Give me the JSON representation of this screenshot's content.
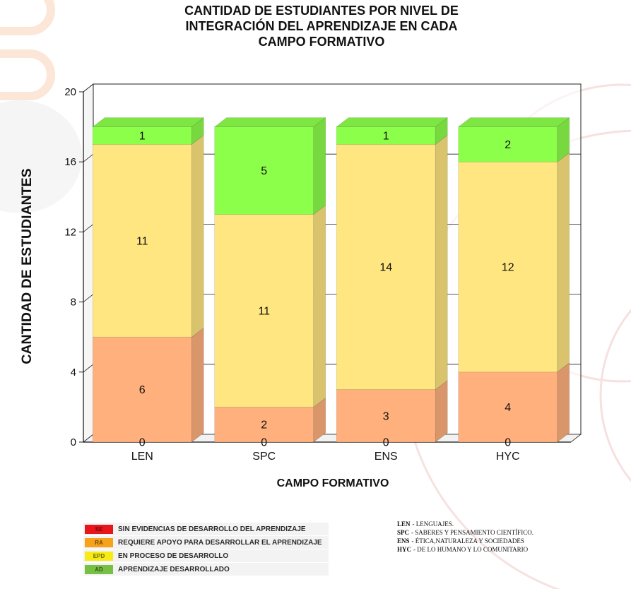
{
  "chart_data": {
    "type": "bar",
    "stacked": true,
    "three_d": true,
    "title": "CANTIDAD DE ESTUDIANTES POR NIVEL DE INTEGRACIÓN DEL APRENDIZAJE EN CADA CAMPO FORMATIVO",
    "xlabel": "CAMPO FORMATIVO",
    "ylabel": "CANTIDAD DE ESTUDIANTES",
    "categories": [
      "LEN",
      "SPC",
      "ENS",
      "HYC"
    ],
    "ylim": [
      0,
      20
    ],
    "yticks": [
      0,
      4,
      8,
      12,
      16,
      20
    ],
    "grid": true,
    "data_labels": true,
    "legend_position": "bottom-left",
    "series": [
      {
        "name": "SE",
        "description": "SIN EVIDENCIAS DE DESARROLLO DEL APRENDIZAJE",
        "values": [
          0,
          0,
          0,
          0
        ],
        "legend_color": "#E8161B"
      },
      {
        "name": "RA",
        "description": "REQUIERE APOYO PARA DESARROLLAR EL APRENDIZAJE",
        "values": [
          6,
          2,
          3,
          4
        ],
        "color": "#FFB07D",
        "legend_color": "#F7A21B"
      },
      {
        "name": "EPD",
        "description": "EN PROCESO DE DESARROLLO",
        "values": [
          11,
          11,
          14,
          12
        ],
        "color": "#FFE680",
        "legend_color": "#F6EB14"
      },
      {
        "name": "AD",
        "description": "APRENDIZAJE DESARROLLADO",
        "values": [
          1,
          5,
          1,
          2
        ],
        "color": "#8CFF4A",
        "legend_color": "#78C043"
      }
    ]
  },
  "abbreviations": [
    {
      "code": "LEN",
      "text": "- LENGUAJES."
    },
    {
      "code": "SPC",
      "text": "- SABERES Y PENSAMIENTO CIENTÍFICO."
    },
    {
      "code": "ENS",
      "text": "- ÉTICA,NATURALEZA Y SOCIEDADES"
    },
    {
      "code": "HYC",
      "text": "- DE LO HUMANO Y LO COMUNITARIO"
    }
  ]
}
